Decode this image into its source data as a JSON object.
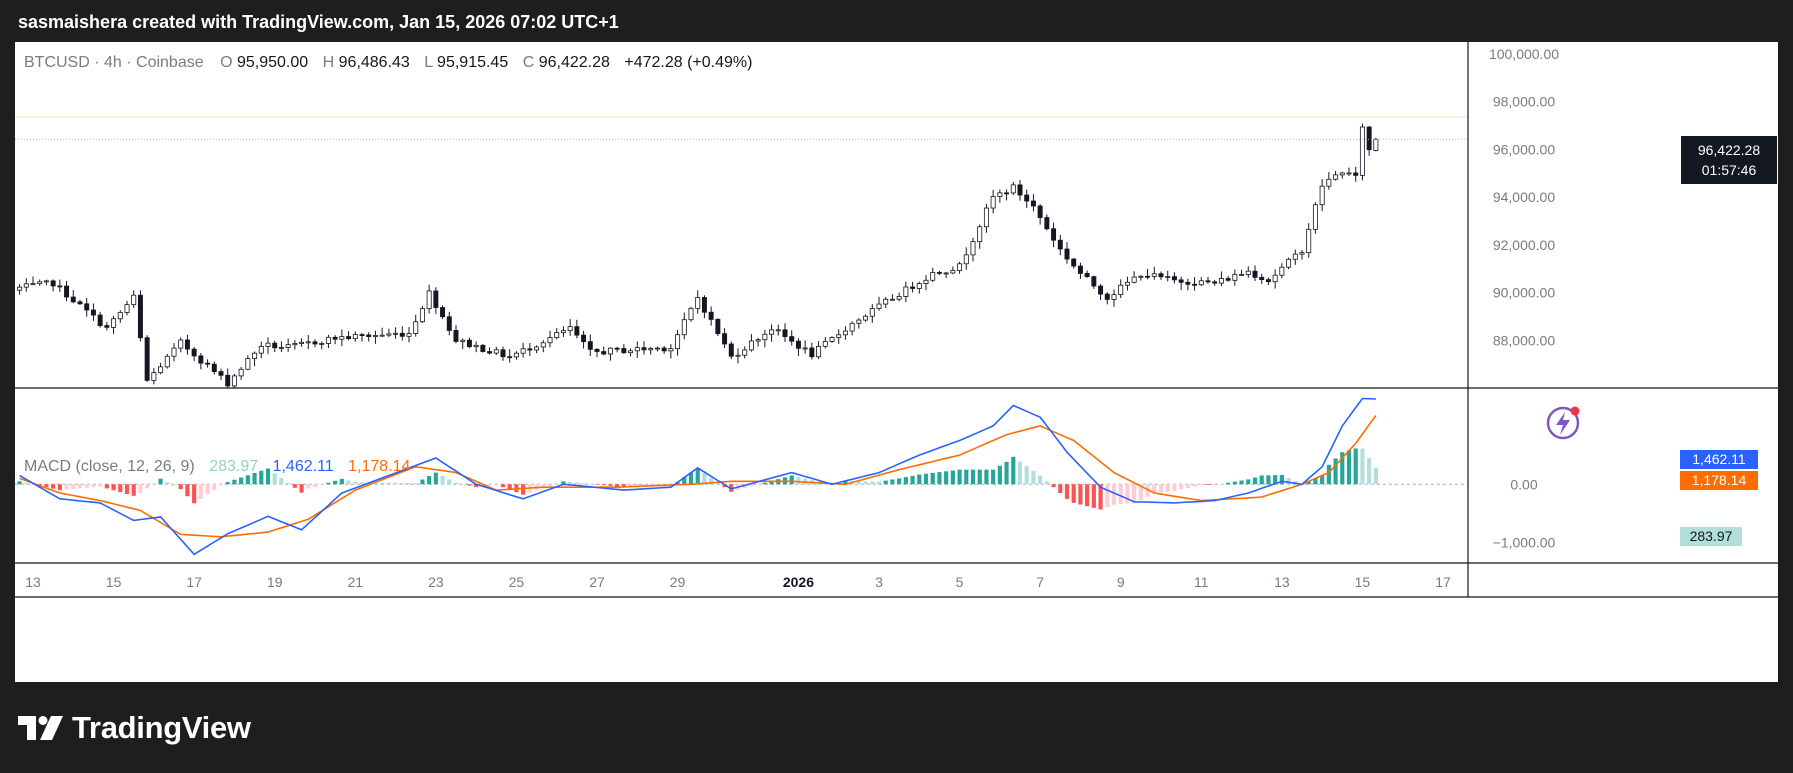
{
  "header": {
    "caption": "sasmaishera created with TradingView.com, Jan 15, 2026 07:02 UTC+1"
  },
  "footer": {
    "brand": "TradingView"
  },
  "colors": {
    "background": "#1e1e1e",
    "pane_bg": "#ffffff",
    "candle_up_body": "#ffffff",
    "candle_down_body": "#131722",
    "candle_outline": "#131722",
    "macd_line": "#2962ff",
    "signal_line": "#ff6d00",
    "hist_pos_strong": "#26a69a",
    "hist_pos_weak": "#b2dfdb",
    "hist_neg_strong": "#ff5252",
    "hist_neg_weak": "#ffcdd2",
    "price_label_bg": "#131722",
    "zero_line": "#b0b0b0",
    "brand_accent": "#7e57c2"
  },
  "legend": {
    "symbol": "BTCUSD · 4h · Coinbase",
    "o_label": "O",
    "o_value": "95,950.00",
    "h_label": "H",
    "h_value": "96,486.43",
    "l_label": "L",
    "l_value": "95,915.45",
    "c_label": "C",
    "c_value": "96,422.28",
    "change": "+472.28 (+0.49%)"
  },
  "price_label": {
    "value": "96,422.28",
    "countdown": "01:57:46"
  },
  "macd_legend": {
    "name": "MACD (close, 12, 26, 9)",
    "hist": "283.97",
    "macd": "1,462.11",
    "signal": "1,178.14"
  },
  "macd_labels": {
    "macd": "1,462.11",
    "signal": "1,178.14",
    "hist": "283.97"
  },
  "chart_data": [
    {
      "type": "candlestick",
      "symbol": "BTCUSD",
      "timeframe": "4h",
      "exchange": "Coinbase",
      "ylim": [
        86000,
        100500
      ],
      "y_ticks": [
        "100,000.00",
        "98,000.00",
        "96,000.00",
        "94,000.00",
        "92,000.00",
        "90,000.00",
        "88,000.00"
      ],
      "y_tick_values": [
        100000,
        98000,
        96000,
        94000,
        92000,
        90000,
        88000
      ],
      "x_tick_labels": [
        "13",
        "15",
        "17",
        "19",
        "21",
        "23",
        "25",
        "27",
        "29",
        "2026",
        "3",
        "5",
        "7",
        "9",
        "11",
        "13",
        "15",
        "17"
      ],
      "x_tick_dates": [
        "2025-12-13",
        "2025-12-15",
        "2025-12-17",
        "2025-12-19",
        "2025-12-21",
        "2025-12-23",
        "2025-12-25",
        "2025-12-27",
        "2025-12-29",
        "2026-01-01",
        "2026-01-03",
        "2026-01-05",
        "2026-01-07",
        "2026-01-09",
        "2026-01-11",
        "2026-01-13",
        "2026-01-15",
        "2026-01-17"
      ],
      "first_bar": "2025-12-12 16:00",
      "bar_hours": 4,
      "close_path": [
        {
          "date": "2025-12-12 16:00",
          "close": 90200
        },
        {
          "date": "2025-12-13 12:00",
          "close": 90400
        },
        {
          "date": "2025-12-14 20:00",
          "close": 88500
        },
        {
          "date": "2025-12-15 12:00",
          "close": 89800
        },
        {
          "date": "2025-12-15 20:00",
          "close": 86300
        },
        {
          "date": "2025-12-16 16:00",
          "close": 87900
        },
        {
          "date": "2025-12-17 20:00",
          "close": 86200
        },
        {
          "date": "2025-12-18 16:00",
          "close": 87800
        },
        {
          "date": "2025-12-19 08:00",
          "close": 87700
        },
        {
          "date": "2025-12-20 12:00",
          "close": 88100
        },
        {
          "date": "2025-12-22 08:00",
          "close": 88300
        },
        {
          "date": "2025-12-22 20:00",
          "close": 90000
        },
        {
          "date": "2025-12-23 12:00",
          "close": 88000
        },
        {
          "date": "2025-12-24 20:00",
          "close": 87300
        },
        {
          "date": "2025-12-26 08:00",
          "close": 88500
        },
        {
          "date": "2025-12-26 20:00",
          "close": 87500
        },
        {
          "date": "2025-12-28 20:00",
          "close": 87700
        },
        {
          "date": "2025-12-29 12:00",
          "close": 89800
        },
        {
          "date": "2025-12-30 08:00",
          "close": 87300
        },
        {
          "date": "2025-12-31 08:00",
          "close": 88500
        },
        {
          "date": "2026-01-01 08:00",
          "close": 87400
        },
        {
          "date": "2026-01-02 08:00",
          "close": 88700
        },
        {
          "date": "2026-01-03 04:00",
          "close": 89600
        },
        {
          "date": "2026-01-04 08:00",
          "close": 90800
        },
        {
          "date": "2026-01-05 00:00",
          "close": 91100
        },
        {
          "date": "2026-01-05 20:00",
          "close": 94000
        },
        {
          "date": "2026-01-06 08:00",
          "close": 94400
        },
        {
          "date": "2026-01-06 20:00",
          "close": 93600
        },
        {
          "date": "2026-01-07 12:00",
          "close": 91800
        },
        {
          "date": "2026-01-08 00:00",
          "close": 90800
        },
        {
          "date": "2026-01-08 16:00",
          "close": 89800
        },
        {
          "date": "2026-01-09 12:00",
          "close": 90800
        },
        {
          "date": "2026-01-10 08:00",
          "close": 90500
        },
        {
          "date": "2026-01-11 08:00",
          "close": 90400
        },
        {
          "date": "2026-01-12 04:00",
          "close": 90900
        },
        {
          "date": "2026-01-12 16:00",
          "close": 90500
        },
        {
          "date": "2026-01-13 12:00",
          "close": 91800
        },
        {
          "date": "2026-01-14 00:00",
          "close": 94500
        },
        {
          "date": "2026-01-14 12:00",
          "close": 95100
        },
        {
          "date": "2026-01-14 20:00",
          "close": 94800
        },
        {
          "date": "2026-01-15 00:00",
          "close": 97000
        },
        {
          "date": "2026-01-15 04:00",
          "close": 95950
        },
        {
          "date": "2026-01-15 08:00",
          "close": 96422.28
        }
      ],
      "last_candle": {
        "date": "2026-01-15 08:00",
        "open": 95950.0,
        "high": 96486.43,
        "low": 95915.45,
        "close": 96422.28
      }
    },
    {
      "type": "line",
      "title": "MACD (close, 12, 26, 9)",
      "ylim": [
        -1350,
        1650
      ],
      "y_ticks": [
        "0.00",
        "−1,000.00"
      ],
      "y_tick_values": [
        0,
        -1000
      ],
      "series": [
        {
          "name": "MACD",
          "color": "#2962ff",
          "points": [
            {
              "date": "2025-12-12 16:00",
              "value": 150
            },
            {
              "date": "2025-12-13 16:00",
              "value": -250
            },
            {
              "date": "2025-12-14 16:00",
              "value": -320
            },
            {
              "date": "2025-12-15 12:00",
              "value": -620
            },
            {
              "date": "2025-12-16 04:00",
              "value": -560
            },
            {
              "date": "2025-12-17 00:00",
              "value": -1200
            },
            {
              "date": "2025-12-17 20:00",
              "value": -850
            },
            {
              "date": "2025-12-18 20:00",
              "value": -550
            },
            {
              "date": "2025-12-19 16:00",
              "value": -780
            },
            {
              "date": "2025-12-20 16:00",
              "value": -150
            },
            {
              "date": "2025-12-21 20:00",
              "value": 150
            },
            {
              "date": "2025-12-23 00:00",
              "value": 450
            },
            {
              "date": "2025-12-24 00:00",
              "value": 0
            },
            {
              "date": "2025-12-25 04:00",
              "value": -250
            },
            {
              "date": "2025-12-26 04:00",
              "value": 0
            },
            {
              "date": "2025-12-27 16:00",
              "value": -100
            },
            {
              "date": "2025-12-28 20:00",
              "value": -50
            },
            {
              "date": "2025-12-29 12:00",
              "value": 280
            },
            {
              "date": "2025-12-30 08:00",
              "value": -80
            },
            {
              "date": "2025-12-31 20:00",
              "value": 200
            },
            {
              "date": "2026-01-01 20:00",
              "value": 0
            },
            {
              "date": "2026-01-03 00:00",
              "value": 200
            },
            {
              "date": "2026-01-04 00:00",
              "value": 500
            },
            {
              "date": "2026-01-05 00:00",
              "value": 750
            },
            {
              "date": "2026-01-05 20:00",
              "value": 1000
            },
            {
              "date": "2026-01-06 08:00",
              "value": 1350
            },
            {
              "date": "2026-01-07 00:00",
              "value": 1150
            },
            {
              "date": "2026-01-07 16:00",
              "value": 550
            },
            {
              "date": "2026-01-08 12:00",
              "value": -50
            },
            {
              "date": "2026-01-09 08:00",
              "value": -300
            },
            {
              "date": "2026-01-10 08:00",
              "value": -320
            },
            {
              "date": "2026-01-11 08:00",
              "value": -280
            },
            {
              "date": "2026-01-12 04:00",
              "value": -150
            },
            {
              "date": "2026-01-13 00:00",
              "value": 50
            },
            {
              "date": "2026-01-13 12:00",
              "value": 0
            },
            {
              "date": "2026-01-14 00:00",
              "value": 300
            },
            {
              "date": "2026-01-14 12:00",
              "value": 1000
            },
            {
              "date": "2026-01-15 00:00",
              "value": 1470
            },
            {
              "date": "2026-01-15 08:00",
              "value": 1462.11
            }
          ]
        },
        {
          "name": "Signal",
          "color": "#ff6d00",
          "points": [
            {
              "date": "2025-12-12 16:00",
              "value": 100
            },
            {
              "date": "2025-12-13 16:00",
              "value": -150
            },
            {
              "date": "2025-12-14 16:00",
              "value": -280
            },
            {
              "date": "2025-12-15 16:00",
              "value": -450
            },
            {
              "date": "2025-12-16 16:00",
              "value": -860
            },
            {
              "date": "2025-12-17 16:00",
              "value": -900
            },
            {
              "date": "2025-12-18 20:00",
              "value": -820
            },
            {
              "date": "2025-12-19 20:00",
              "value": -600
            },
            {
              "date": "2025-12-21 00:00",
              "value": -100
            },
            {
              "date": "2025-12-22 12:00",
              "value": 300
            },
            {
              "date": "2025-12-23 12:00",
              "value": 200
            },
            {
              "date": "2025-12-24 12:00",
              "value": -100
            },
            {
              "date": "2025-12-25 16:00",
              "value": -50
            },
            {
              "date": "2025-12-27 12:00",
              "value": -50
            },
            {
              "date": "2025-12-29 08:00",
              "value": 0
            },
            {
              "date": "2025-12-30 08:00",
              "value": 50
            },
            {
              "date": "2025-12-31 20:00",
              "value": 50
            },
            {
              "date": "2026-01-02 04:00",
              "value": 0
            },
            {
              "date": "2026-01-03 12:00",
              "value": 250
            },
            {
              "date": "2026-01-05 00:00",
              "value": 500
            },
            {
              "date": "2026-01-06 04:00",
              "value": 850
            },
            {
              "date": "2026-01-07 00:00",
              "value": 1000
            },
            {
              "date": "2026-01-07 20:00",
              "value": 750
            },
            {
              "date": "2026-01-08 20:00",
              "value": 200
            },
            {
              "date": "2026-01-09 20:00",
              "value": -150
            },
            {
              "date": "2026-01-11 00:00",
              "value": -280
            },
            {
              "date": "2026-01-12 12:00",
              "value": -220
            },
            {
              "date": "2026-01-13 12:00",
              "value": 0
            },
            {
              "date": "2026-01-14 04:00",
              "value": 200
            },
            {
              "date": "2026-01-14 20:00",
              "value": 700
            },
            {
              "date": "2026-01-15 08:00",
              "value": 1178.14
            }
          ]
        },
        {
          "name": "Histogram",
          "color": "#26a69a",
          "last_value": 283.97
        }
      ]
    }
  ]
}
